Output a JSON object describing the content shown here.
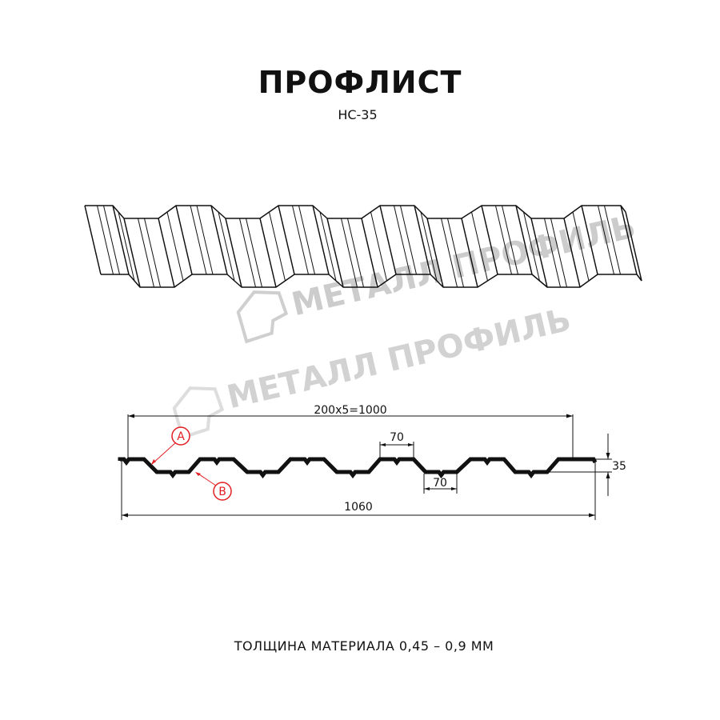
{
  "title": "ПРОФЛИСТ",
  "subtitle": "НС-35",
  "watermark": "МЕТАЛЛ ПРОФИЛЬ",
  "dimensions": {
    "pitch_total": "200x5=1000",
    "full_width": "1060",
    "top_flat": "70",
    "bottom_flat": "70",
    "height": "35"
  },
  "callouts": {
    "a": "A",
    "b": "B"
  },
  "footer": "ТОЛЩИНА МАТЕРИАЛА 0,45 – 0,9 ММ",
  "colors": {
    "line": "#111111",
    "callout": "#e31e24",
    "watermark": "#c8c8c8"
  }
}
